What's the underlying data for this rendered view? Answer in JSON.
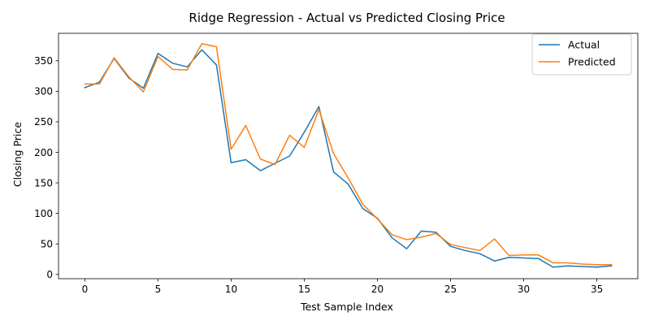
{
  "chart_data": {
    "type": "line",
    "title": "Ridge Regression - Actual vs Predicted Closing Price",
    "xlabel": "Test Sample Index",
    "ylabel": "Closing Price",
    "xlim": [
      -1.8,
      37.8
    ],
    "ylim": [
      -7,
      395
    ],
    "x_ticks": [
      0,
      5,
      10,
      15,
      20,
      25,
      30,
      35
    ],
    "y_ticks": [
      0,
      50,
      100,
      150,
      200,
      250,
      300,
      350
    ],
    "grid": false,
    "legend_position": "top-right",
    "x": [
      0,
      1,
      2,
      3,
      4,
      5,
      6,
      7,
      8,
      9,
      10,
      11,
      12,
      13,
      14,
      15,
      16,
      17,
      18,
      19,
      20,
      21,
      22,
      23,
      24,
      25,
      26,
      27,
      28,
      29,
      30,
      31,
      32,
      33,
      34,
      35,
      36
    ],
    "series": [
      {
        "name": "Actual",
        "color": "#1f77b4",
        "values": [
          306,
          315,
          354,
          322,
          305,
          362,
          346,
          340,
          368,
          343,
          183,
          188,
          170,
          182,
          194,
          233,
          275,
          168,
          148,
          108,
          92,
          60,
          42,
          71,
          69,
          46,
          39,
          34,
          22,
          28,
          27,
          26,
          12,
          14,
          13,
          12,
          14
        ]
      },
      {
        "name": "Predicted",
        "color": "#ff7f0e",
        "values": [
          312,
          312,
          355,
          324,
          299,
          357,
          336,
          335,
          378,
          373,
          205,
          244,
          189,
          180,
          228,
          208,
          270,
          198,
          158,
          115,
          91,
          65,
          57,
          61,
          67,
          49,
          44,
          39,
          58,
          31,
          32,
          32,
          19,
          19,
          17,
          16,
          16
        ]
      }
    ]
  }
}
